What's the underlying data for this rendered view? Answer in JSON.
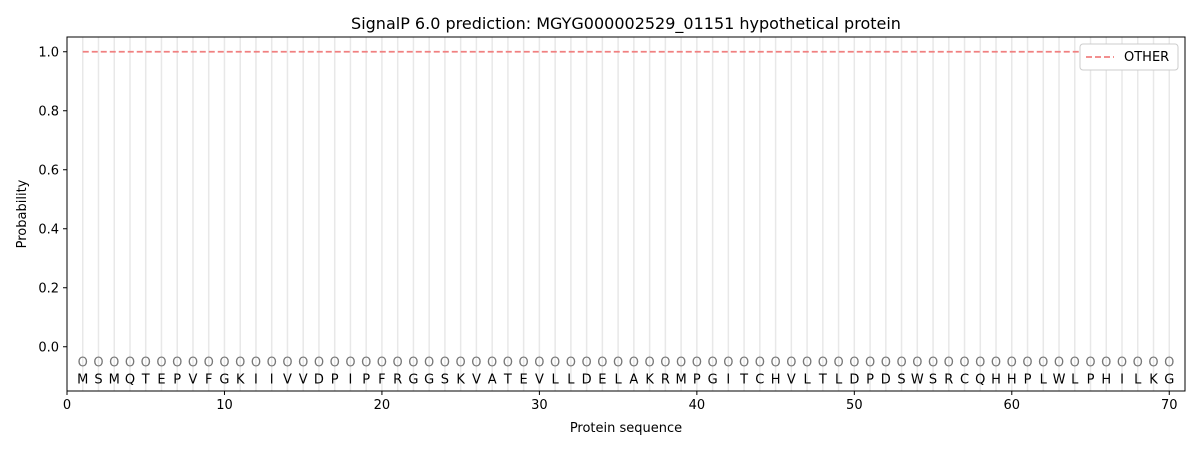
{
  "chart_data": {
    "type": "line",
    "title": "SignalP 6.0 prediction: MGYG000002529_01151 hypothetical protein",
    "xlabel": "Protein sequence",
    "ylabel": "Probability",
    "xlim": [
      0,
      71
    ],
    "ylim": [
      -0.15,
      1.05
    ],
    "xticks": [
      0,
      10,
      20,
      30,
      40,
      50,
      60,
      70
    ],
    "yticks": [
      0.0,
      0.2,
      0.4,
      0.6,
      0.8,
      1.0
    ],
    "ytick_labels": [
      "0.0",
      "0.2",
      "0.4",
      "0.6",
      "0.8",
      "1.0"
    ],
    "sequence": [
      "M",
      "S",
      "M",
      "Q",
      "T",
      "E",
      "P",
      "V",
      "F",
      "G",
      "K",
      "I",
      "I",
      "V",
      "V",
      "D",
      "P",
      "I",
      "P",
      "F",
      "R",
      "G",
      "G",
      "S",
      "K",
      "V",
      "A",
      "T",
      "E",
      "V",
      "L",
      "L",
      "D",
      "E",
      "L",
      "A",
      "K",
      "R",
      "M",
      "P",
      "G",
      "I",
      "T",
      "C",
      "H",
      "V",
      "L",
      "T",
      "L",
      "D",
      "P",
      "D",
      "S",
      "W",
      "S",
      "R",
      "C",
      "Q",
      "H",
      "H",
      "P",
      "L",
      "W",
      "L",
      "P",
      "H",
      "I",
      "L",
      "K",
      "G"
    ],
    "region_label": "O",
    "series": [
      {
        "name": "OTHER",
        "color": "#f08080",
        "style": "dashed",
        "x_start": 1,
        "x_end": 70,
        "value": 1.0
      }
    ],
    "legend_position": "top-right",
    "grid": "vertical lines at each residue"
  }
}
